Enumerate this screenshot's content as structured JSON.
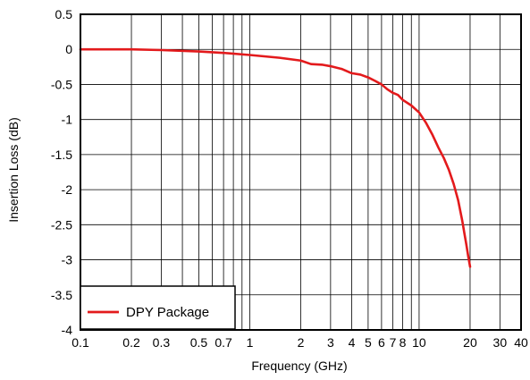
{
  "chart_data": {
    "type": "line",
    "title": "",
    "xlabel": "Frequency (GHz)",
    "ylabel": "Insertion Loss (dB)",
    "xscale": "log",
    "xlim": [
      0.1,
      40
    ],
    "ylim": [
      -4,
      0.5
    ],
    "x_tick_values": [
      0.1,
      0.2,
      0.3,
      0.5,
      0.7,
      1,
      2,
      3,
      4,
      5,
      6,
      7,
      8,
      10,
      20,
      30,
      40
    ],
    "x_tick_labels": [
      "0.1",
      "0.2",
      "0.3",
      "0.5",
      "0.7",
      "1",
      "2",
      "3",
      "4",
      "5",
      "6",
      "7",
      "8",
      "10",
      "20",
      "30",
      "40"
    ],
    "y_tick_values": [
      0.5,
      0,
      -0.5,
      -1,
      -1.5,
      -2,
      -2.5,
      -3,
      -3.5,
      -4
    ],
    "y_tick_labels": [
      "0.5",
      "0",
      "-0.5",
      "-1",
      "-1.5",
      "-2",
      "-2.5",
      "-3",
      "-3.5",
      "-4"
    ],
    "grid": true,
    "legend_position": "bottom-left",
    "series": [
      {
        "name": "DPY Package",
        "color": "#e31a1c",
        "x": [
          0.1,
          0.2,
          0.3,
          0.5,
          0.7,
          1,
          1.5,
          2,
          2.3,
          2.7,
          3,
          3.5,
          4,
          4.5,
          5,
          5.5,
          6,
          6.5,
          7,
          7.5,
          8,
          9,
          10,
          11,
          12,
          13,
          14,
          15,
          16,
          17,
          18,
          18.5,
          19,
          19.5,
          20
        ],
        "values": [
          0,
          0,
          -0.01,
          -0.03,
          -0.05,
          -0.08,
          -0.12,
          -0.16,
          -0.21,
          -0.22,
          -0.24,
          -0.28,
          -0.34,
          -0.36,
          -0.4,
          -0.45,
          -0.5,
          -0.57,
          -0.62,
          -0.65,
          -0.72,
          -0.8,
          -0.9,
          -1.05,
          -1.22,
          -1.4,
          -1.55,
          -1.72,
          -1.92,
          -2.15,
          -2.45,
          -2.62,
          -2.78,
          -2.95,
          -3.1
        ]
      }
    ]
  }
}
